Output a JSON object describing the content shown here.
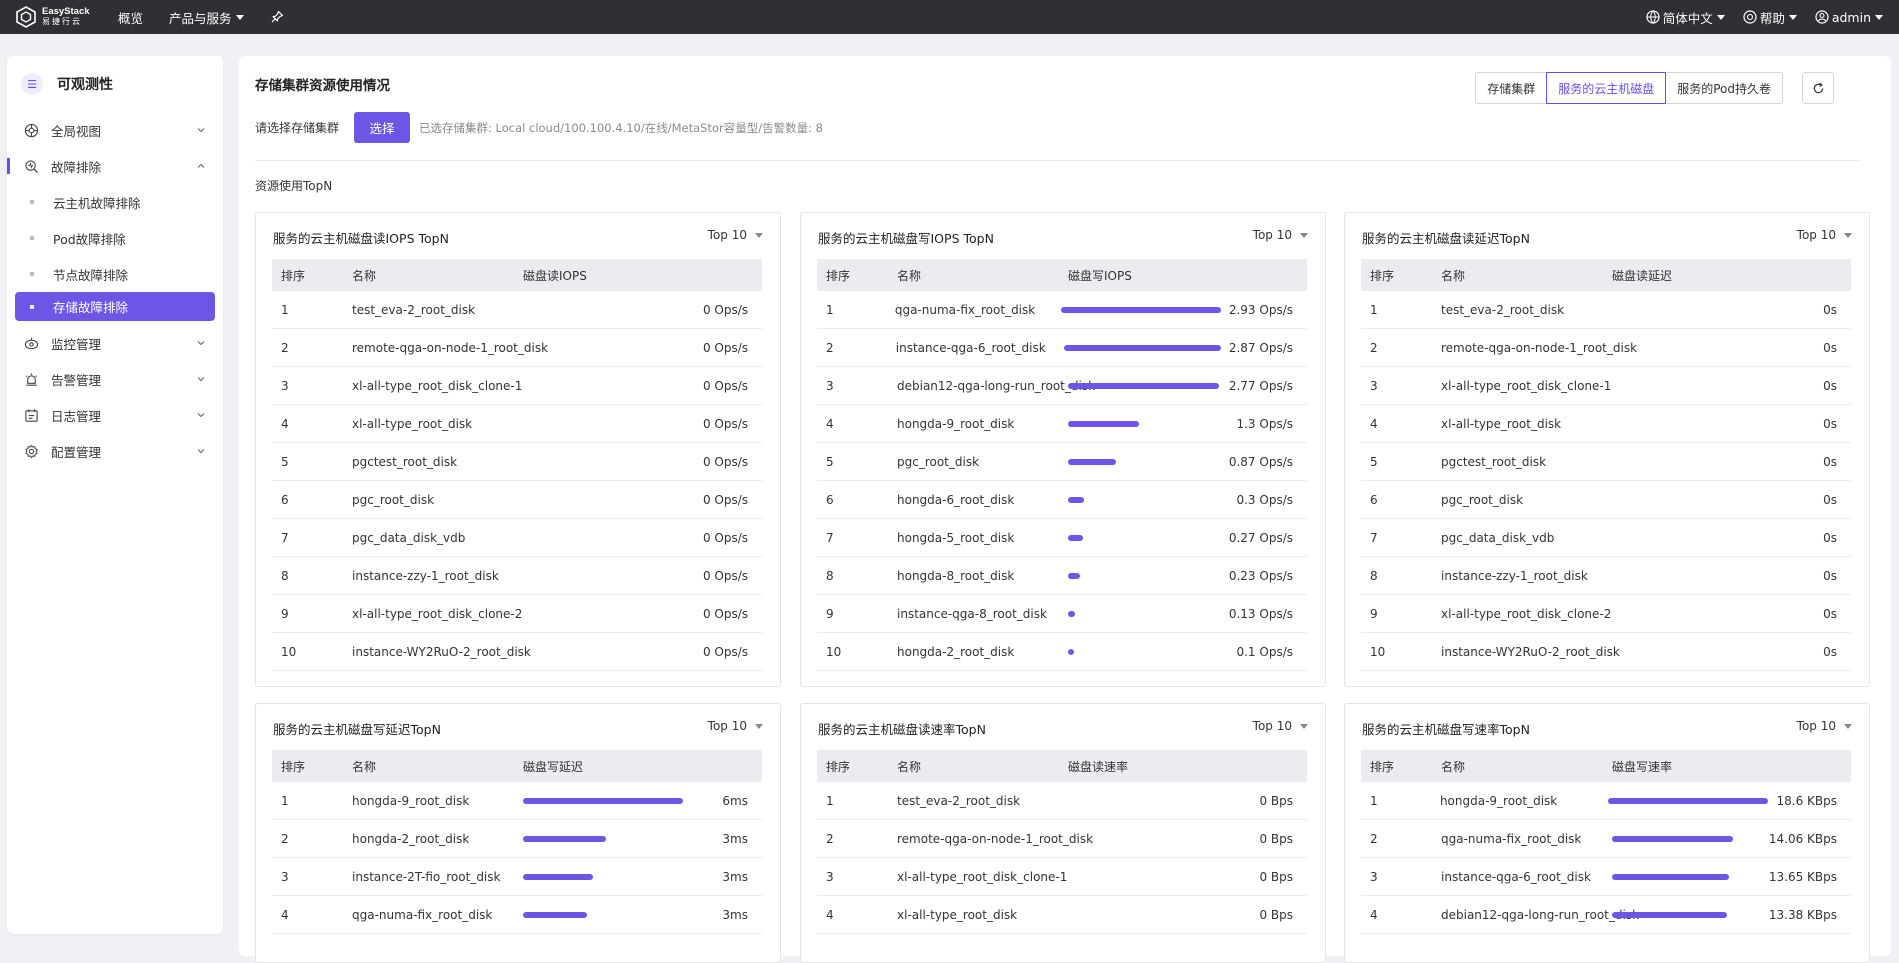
{
  "topbar": {
    "brand": "EasyStack",
    "brand_cn": "易捷行云",
    "nav_overview": "概览",
    "nav_products": "产品与服务",
    "language": "简体中文",
    "help": "帮助",
    "user": "admin"
  },
  "sidebar": {
    "title": "可观测性",
    "items": [
      {
        "label": "全局视图"
      },
      {
        "label": "故障排除"
      },
      {
        "label": "监控管理"
      },
      {
        "label": "告警管理"
      },
      {
        "label": "日志管理"
      },
      {
        "label": "配置管理"
      }
    ],
    "subitems": [
      {
        "label": "云主机故障排除"
      },
      {
        "label": "Pod故障排除"
      },
      {
        "label": "节点故障排除"
      },
      {
        "label": "存储故障排除"
      }
    ]
  },
  "main": {
    "title": "存储集群资源使用情况",
    "tabs": [
      "存储集群",
      "服务的云主机磁盘",
      "服务的Pod持久卷"
    ],
    "picker_label": "请选择存储集群",
    "picker_button": "选择",
    "picker_info": "已选存储集群:  Local cloud/100.100.4.10/在线/MetaStor容量型/告警数量: 8",
    "section_title": "资源使用TopN"
  },
  "cards": [
    {
      "title": "服务的云主机磁盘读IOPS TopN",
      "top": "Top 10",
      "headers": [
        "排序",
        "名称",
        "磁盘读IOPS"
      ],
      "rows": [
        {
          "rank": "1",
          "name": "test_eva-2_root_disk",
          "value": "0 Ops/s",
          "bar": 0
        },
        {
          "rank": "2",
          "name": "remote-qga-on-node-1_root_disk",
          "value": "0 Ops/s",
          "bar": 0
        },
        {
          "rank": "3",
          "name": "xl-all-type_root_disk_clone-1",
          "value": "0 Ops/s",
          "bar": 0
        },
        {
          "rank": "4",
          "name": "xl-all-type_root_disk",
          "value": "0 Ops/s",
          "bar": 0
        },
        {
          "rank": "5",
          "name": "pgctest_root_disk",
          "value": "0 Ops/s",
          "bar": 0
        },
        {
          "rank": "6",
          "name": "pgc_root_disk",
          "value": "0 Ops/s",
          "bar": 0
        },
        {
          "rank": "7",
          "name": "pgc_data_disk_vdb",
          "value": "0 Ops/s",
          "bar": 0
        },
        {
          "rank": "8",
          "name": "instance-zzy-1_root_disk",
          "value": "0 Ops/s",
          "bar": 0
        },
        {
          "rank": "9",
          "name": "xl-all-type_root_disk_clone-2",
          "value": "0 Ops/s",
          "bar": 0
        },
        {
          "rank": "10",
          "name": "instance-WY2RuO-2_root_disk",
          "value": "0 Ops/s",
          "bar": 0
        }
      ]
    },
    {
      "title": "服务的云主机磁盘写IOPS TopN",
      "top": "Top 10",
      "headers": [
        "排序",
        "名称",
        "磁盘写IOPS"
      ],
      "rows": [
        {
          "rank": "1",
          "name": "qga-numa-fix_root_disk",
          "value": "2.93 Ops/s",
          "bar": 1.0
        },
        {
          "rank": "2",
          "name": "instance-qga-6_root_disk",
          "value": "2.87 Ops/s",
          "bar": 0.98
        },
        {
          "rank": "3",
          "name": "debian12-qga-long-run_root_disk",
          "value": "2.77 Ops/s",
          "bar": 0.945
        },
        {
          "rank": "4",
          "name": "hongda-9_root_disk",
          "value": "1.3 Ops/s",
          "bar": 0.444
        },
        {
          "rank": "5",
          "name": "pgc_root_disk",
          "value": "0.87 Ops/s",
          "bar": 0.297
        },
        {
          "rank": "6",
          "name": "hongda-6_root_disk",
          "value": "0.3 Ops/s",
          "bar": 0.102
        },
        {
          "rank": "7",
          "name": "hongda-5_root_disk",
          "value": "0.27 Ops/s",
          "bar": 0.092
        },
        {
          "rank": "8",
          "name": "hongda-8_root_disk",
          "value": "0.23 Ops/s",
          "bar": 0.078
        },
        {
          "rank": "9",
          "name": "instance-qga-8_root_disk",
          "value": "0.13 Ops/s",
          "bar": 0.044
        },
        {
          "rank": "10",
          "name": "hongda-2_root_disk",
          "value": "0.1 Ops/s",
          "bar": 0.034
        }
      ]
    },
    {
      "title": "服务的云主机磁盘读延迟TopN",
      "top": "Top 10",
      "headers": [
        "排序",
        "名称",
        "磁盘读延迟"
      ],
      "rows": [
        {
          "rank": "1",
          "name": "test_eva-2_root_disk",
          "value": "0s",
          "bar": 0
        },
        {
          "rank": "2",
          "name": "remote-qga-on-node-1_root_disk",
          "value": "0s",
          "bar": 0
        },
        {
          "rank": "3",
          "name": "xl-all-type_root_disk_clone-1",
          "value": "0s",
          "bar": 0
        },
        {
          "rank": "4",
          "name": "xl-all-type_root_disk",
          "value": "0s",
          "bar": 0
        },
        {
          "rank": "5",
          "name": "pgctest_root_disk",
          "value": "0s",
          "bar": 0
        },
        {
          "rank": "6",
          "name": "pgc_root_disk",
          "value": "0s",
          "bar": 0
        },
        {
          "rank": "7",
          "name": "pgc_data_disk_vdb",
          "value": "0s",
          "bar": 0
        },
        {
          "rank": "8",
          "name": "instance-zzy-1_root_disk",
          "value": "0s",
          "bar": 0
        },
        {
          "rank": "9",
          "name": "xl-all-type_root_disk_clone-2",
          "value": "0s",
          "bar": 0
        },
        {
          "rank": "10",
          "name": "instance-WY2RuO-2_root_disk",
          "value": "0s",
          "bar": 0
        }
      ]
    },
    {
      "title": "服务的云主机磁盘写延迟TopN",
      "top": "Top 10",
      "headers": [
        "排序",
        "名称",
        "磁盘写延迟"
      ],
      "rows": [
        {
          "rank": "1",
          "name": "hongda-9_root_disk",
          "value": "6ms",
          "bar": 1.0
        },
        {
          "rank": "2",
          "name": "hongda-2_root_disk",
          "value": "3ms",
          "bar": 0.52
        },
        {
          "rank": "3",
          "name": "instance-2T-fio_root_disk",
          "value": "3ms",
          "bar": 0.44
        },
        {
          "rank": "4",
          "name": "qga-numa-fix_root_disk",
          "value": "3ms",
          "bar": 0.4
        }
      ]
    },
    {
      "title": "服务的云主机磁盘读速率TopN",
      "top": "Top 10",
      "headers": [
        "排序",
        "名称",
        "磁盘读速率"
      ],
      "rows": [
        {
          "rank": "1",
          "name": "test_eva-2_root_disk",
          "value": "0 Bps",
          "bar": 0
        },
        {
          "rank": "2",
          "name": "remote-qga-on-node-1_root_disk",
          "value": "0 Bps",
          "bar": 0
        },
        {
          "rank": "3",
          "name": "xl-all-type_root_disk_clone-1",
          "value": "0 Bps",
          "bar": 0
        },
        {
          "rank": "4",
          "name": "xl-all-type_root_disk",
          "value": "0 Bps",
          "bar": 0
        }
      ]
    },
    {
      "title": "服务的云主机磁盘写速率TopN",
      "top": "Top 10",
      "headers": [
        "排序",
        "名称",
        "磁盘写速率"
      ],
      "rows": [
        {
          "rank": "1",
          "name": "hongda-9_root_disk",
          "value": "18.6 KBps",
          "bar": 1.0
        },
        {
          "rank": "2",
          "name": "qga-numa-fix_root_disk",
          "value": "14.06 KBps",
          "bar": 0.756
        },
        {
          "rank": "3",
          "name": "instance-qga-6_root_disk",
          "value": "13.65 KBps",
          "bar": 0.734
        },
        {
          "rank": "4",
          "name": "debian12-qga-long-run_root_disk",
          "value": "13.38 KBps",
          "bar": 0.72
        }
      ]
    }
  ],
  "colors": {
    "accent": "#6f55e6",
    "topbar": "#2f3033"
  }
}
